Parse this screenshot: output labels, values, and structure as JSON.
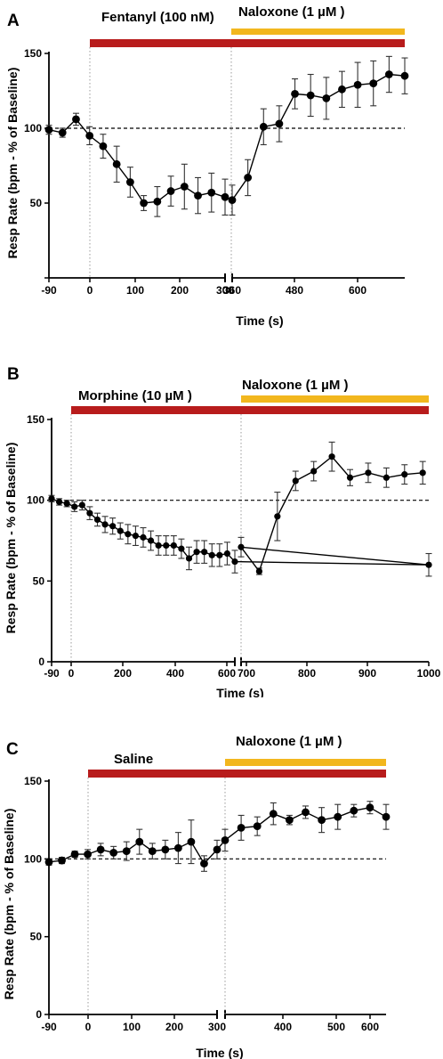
{
  "colors": {
    "bar_drug": "#b81c1c",
    "bar_naloxone": "#f2b71e",
    "line": "#000000",
    "baseline": "#000000",
    "guide": "#9a9a9a"
  },
  "chart_data": [
    {
      "panel": "A",
      "type": "line",
      "bars": [
        {
          "label": "Fentanyl (100 nM)",
          "color": "#b81c1c"
        },
        {
          "label": "Naloxone (1 µM )",
          "color": "#f2b71e"
        }
      ],
      "xlabel": "Time (s)",
      "ylabel": "Resp Rate (bpm - % of Baseline)",
      "ylim": [
        0,
        150
      ],
      "yticks": [
        "50",
        "100",
        "150"
      ],
      "xticks": [
        "-90",
        "0",
        "100",
        "200",
        "300",
        "360",
        "480",
        "600"
      ],
      "axis_break": [
        300,
        360
      ],
      "baseline": 100,
      "x": [
        -90,
        -60,
        -30,
        0,
        30,
        60,
        90,
        120,
        150,
        180,
        210,
        240,
        270,
        300,
        360,
        390,
        420,
        450,
        480,
        510,
        540,
        570,
        600,
        630,
        660,
        690
      ],
      "y": [
        99,
        97,
        106,
        95,
        88,
        76,
        64,
        50,
        51,
        58,
        61,
        55,
        57,
        54,
        52,
        67,
        101,
        103,
        123,
        122,
        120,
        126,
        129,
        130,
        136,
        135
      ],
      "err": [
        3,
        3,
        4,
        6,
        8,
        12,
        10,
        5,
        10,
        10,
        15,
        12,
        13,
        12,
        10,
        12,
        12,
        12,
        10,
        14,
        14,
        12,
        15,
        15,
        12,
        12
      ]
    },
    {
      "panel": "B",
      "type": "line",
      "bars": [
        {
          "label": "Morphine (10 µM )",
          "color": "#b81c1c"
        },
        {
          "label": "Naloxone (1 µM )",
          "color": "#f2b71e"
        }
      ],
      "xlabel": "Time (s)",
      "ylabel": "Resp Rate (bpm - % of Baseline)",
      "ylim": [
        0,
        150
      ],
      "yticks": [
        "0",
        "50",
        "100",
        "150"
      ],
      "xticks": [
        "-90",
        "0",
        "200",
        "400",
        "600",
        "700",
        "800",
        "900",
        "1000"
      ],
      "axis_break": [
        630,
        690
      ],
      "baseline": 100,
      "x": [
        -90,
        -60,
        -30,
        0,
        30,
        60,
        90,
        120,
        150,
        180,
        210,
        240,
        270,
        300,
        330,
        360,
        390,
        420,
        450,
        480,
        510,
        540,
        570,
        600,
        630,
        660,
        690,
        720,
        750,
        780,
        810,
        840,
        870,
        900,
        930,
        960,
        990
      ],
      "y": [
        101,
        99,
        98,
        96,
        97,
        92,
        88,
        85,
        84,
        81,
        79,
        78,
        77,
        75,
        72,
        72,
        72,
        70,
        64,
        68,
        68,
        66,
        66,
        67,
        62,
        60,
        71,
        56,
        90,
        112,
        118,
        127,
        114,
        117,
        114,
        116,
        117
      ],
      "err": [
        2,
        2,
        2,
        3,
        3,
        4,
        4,
        5,
        5,
        5,
        6,
        6,
        6,
        6,
        6,
        6,
        6,
        6,
        7,
        7,
        7,
        7,
        7,
        7,
        7,
        7,
        6,
        2,
        15,
        6,
        6,
        9,
        5,
        6,
        6,
        6,
        7
      ]
    },
    {
      "panel": "C",
      "type": "line",
      "bars": [
        {
          "label": "Saline",
          "color": "#b81c1c"
        },
        {
          "label": "Naloxone (1 µM )",
          "color": "#f2b71e"
        }
      ],
      "xlabel": "Time (s)",
      "ylabel": "Resp Rate (bpm - % of Baseline)",
      "ylim": [
        0,
        150
      ],
      "yticks": [
        "0",
        "50",
        "100",
        "150"
      ],
      "xticks": [
        "-90",
        "0",
        "100",
        "200",
        "300",
        "400",
        "500",
        "600"
      ],
      "axis_break": [
        300,
        330
      ],
      "baseline": 100,
      "x": [
        -90,
        -60,
        -30,
        0,
        30,
        60,
        90,
        120,
        150,
        180,
        210,
        240,
        270,
        300,
        330,
        360,
        390,
        420,
        450,
        480,
        510,
        540,
        570,
        600,
        630
      ],
      "y": [
        98,
        99,
        103,
        103,
        106,
        104,
        105,
        111,
        105,
        106,
        107,
        111,
        97,
        106,
        112,
        120,
        121,
        129,
        125,
        130,
        125,
        127,
        131,
        133,
        127
      ],
      "err": [
        2,
        2,
        2,
        3,
        4,
        4,
        6,
        8,
        5,
        6,
        10,
        14,
        5,
        6,
        7,
        8,
        6,
        7,
        3,
        4,
        8,
        8,
        4,
        4,
        8
      ]
    }
  ]
}
